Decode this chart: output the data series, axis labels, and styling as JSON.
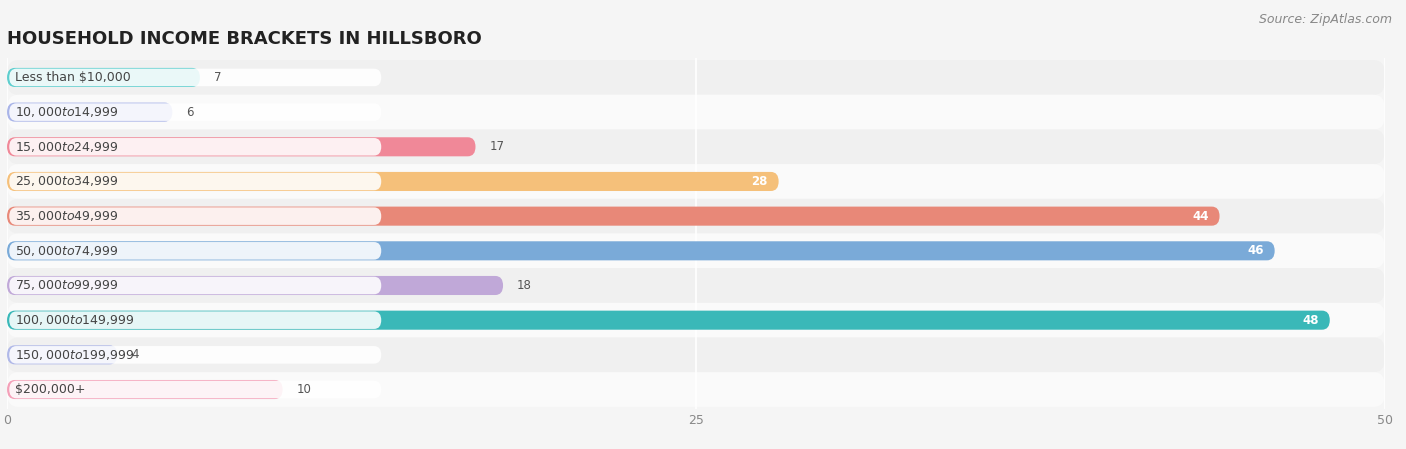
{
  "title": "HOUSEHOLD INCOME BRACKETS IN HILLSBORO",
  "source": "Source: ZipAtlas.com",
  "categories": [
    "Less than $10,000",
    "$10,000 to $14,999",
    "$15,000 to $24,999",
    "$25,000 to $34,999",
    "$35,000 to $49,999",
    "$50,000 to $74,999",
    "$75,000 to $99,999",
    "$100,000 to $149,999",
    "$150,000 to $199,999",
    "$200,000+"
  ],
  "values": [
    7,
    6,
    17,
    28,
    44,
    46,
    18,
    48,
    4,
    10
  ],
  "bar_colors": [
    "#5ecece",
    "#a9b4e8",
    "#f08898",
    "#f5c07a",
    "#e88878",
    "#7aaad8",
    "#c0a8d8",
    "#3ab8b8",
    "#b0b8e8",
    "#f4a0b8"
  ],
  "xlim": [
    0,
    50
  ],
  "xticks": [
    0,
    25,
    50
  ],
  "background_color": "#f5f5f5",
  "row_bg_even": "#f0f0f0",
  "row_bg_odd": "#fafafa",
  "bar_bg_color": "#e8e8e8",
  "title_fontsize": 13,
  "label_fontsize": 9,
  "value_fontsize": 8.5,
  "source_fontsize": 9,
  "value_threshold": 20
}
